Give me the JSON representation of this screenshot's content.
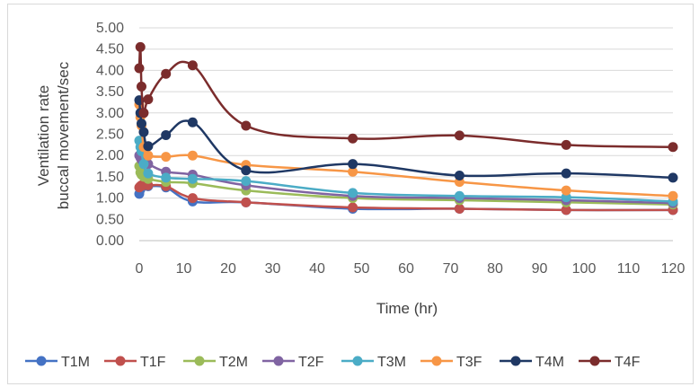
{
  "chart_data": {
    "type": "line",
    "title": "",
    "xlabel": "Time (hr)",
    "ylabel_lines": [
      "Ventilation rate",
      "buccal movement/sec"
    ],
    "xlim": [
      0,
      120
    ],
    "ylim": [
      0,
      5
    ],
    "xticks": [
      0,
      10,
      20,
      30,
      40,
      50,
      60,
      70,
      80,
      90,
      100,
      110,
      120
    ],
    "yticks": [
      "0.00",
      "0.50",
      "1.00",
      "1.50",
      "2.00",
      "2.50",
      "3.00",
      "3.50",
      "4.00",
      "4.50",
      "5.00"
    ],
    "grid": "horizontal",
    "legend_position": "bottom",
    "x": [
      0,
      0.25,
      0.5,
      1,
      2,
      6,
      12,
      24,
      48,
      72,
      96,
      120
    ],
    "series": [
      {
        "name": "T1M",
        "color": "#4472C4",
        "values": [
          1.1,
          1.2,
          1.25,
          1.3,
          1.28,
          1.25,
          0.92,
          0.9,
          0.75,
          0.75,
          0.72,
          0.72
        ]
      },
      {
        "name": "T1F",
        "color": "#C0504D",
        "values": [
          1.25,
          1.28,
          1.3,
          1.3,
          1.3,
          1.28,
          1.0,
          0.9,
          0.78,
          0.75,
          0.72,
          0.72
        ]
      },
      {
        "name": "T2M",
        "color": "#9BBB59",
        "values": [
          1.75,
          1.6,
          1.55,
          1.5,
          1.45,
          1.38,
          1.35,
          1.18,
          1.0,
          0.95,
          0.9,
          0.85
        ]
      },
      {
        "name": "T2F",
        "color": "#8064A2",
        "values": [
          2.0,
          1.95,
          1.9,
          1.85,
          1.8,
          1.62,
          1.55,
          1.3,
          1.05,
          1.0,
          0.95,
          0.88
        ]
      },
      {
        "name": "T3M",
        "color": "#4BACC6",
        "values": [
          2.35,
          2.2,
          2.1,
          1.8,
          1.58,
          1.48,
          1.45,
          1.4,
          1.12,
          1.05,
          1.02,
          0.92
        ]
      },
      {
        "name": "T3F",
        "color": "#F79646",
        "values": [
          3.2,
          2.9,
          2.7,
          2.2,
          2.0,
          1.97,
          2.0,
          1.78,
          1.62,
          1.38,
          1.18,
          1.05
        ]
      },
      {
        "name": "T4M",
        "color": "#1F3864",
        "values": [
          3.3,
          3.0,
          2.75,
          2.55,
          2.22,
          2.48,
          2.78,
          1.65,
          1.8,
          1.53,
          1.58,
          1.48
        ]
      },
      {
        "name": "T4F",
        "color": "#7B2C2C",
        "values": [
          4.05,
          4.55,
          3.62,
          3.0,
          3.32,
          3.92,
          4.12,
          2.7,
          2.4,
          2.47,
          2.25,
          2.2
        ]
      }
    ]
  }
}
